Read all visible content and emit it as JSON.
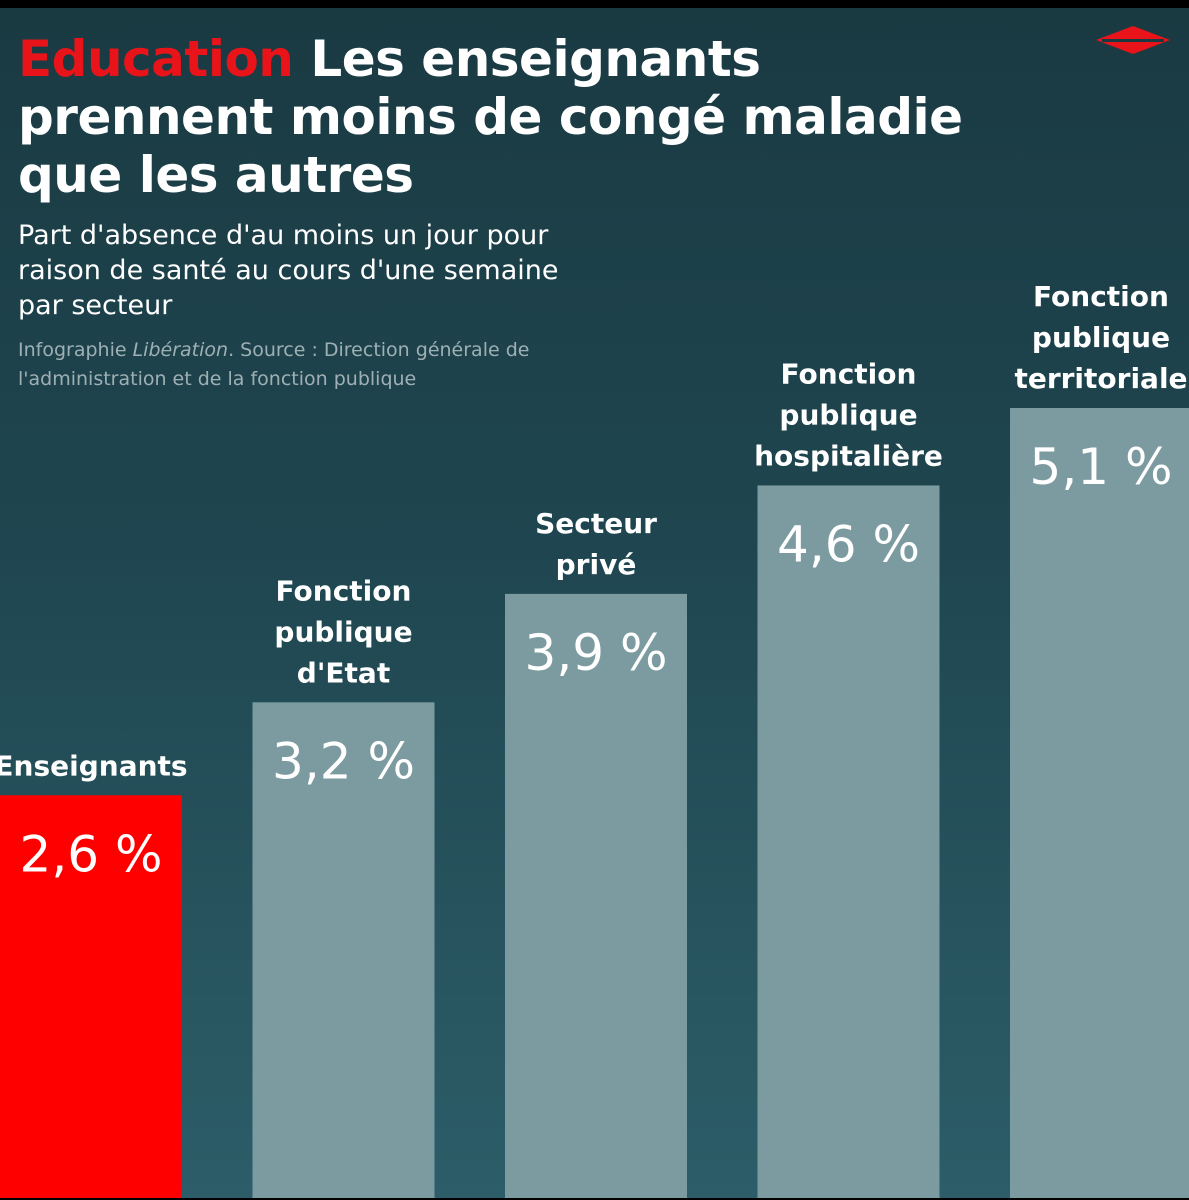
{
  "header": {
    "kicker": "Education",
    "title": "Les enseignants prennent moins de congé maladie que les autres",
    "subtitle": "Part d'absence d'au moins un jour pour raison de santé au cours d'une semaine par secteur",
    "source_prefix": "Infographie ",
    "source_brand": "Libération",
    "source_rest": ". Source : Direction générale de l'administration et de la fonction publique"
  },
  "logo": {
    "icon": "liberation-logo-icon",
    "color": "#e8141a"
  },
  "colors": {
    "highlight": "#ff0000",
    "bar": "#7c9ba0",
    "background_top": "#1a3a42",
    "background_bottom": "#2c5d68"
  },
  "chart_data": {
    "type": "bar",
    "categories": [
      [
        "Enseignants"
      ],
      [
        "Fonction",
        "publique",
        "d'Etat"
      ],
      [
        "Secteur",
        "privé"
      ],
      [
        "Fonction",
        "publique",
        "hospitalière"
      ],
      [
        "Fonction",
        "publique",
        "territoriale"
      ]
    ],
    "values": [
      2.6,
      3.2,
      3.9,
      4.6,
      5.1
    ],
    "value_labels": [
      "2,6 %",
      "3,2 %",
      "3,9 %",
      "4,6 %",
      "5,1 %"
    ],
    "highlight_index": 0,
    "unit": "%",
    "ylim": [
      0,
      5.1
    ],
    "grid": false,
    "legend": "none"
  }
}
